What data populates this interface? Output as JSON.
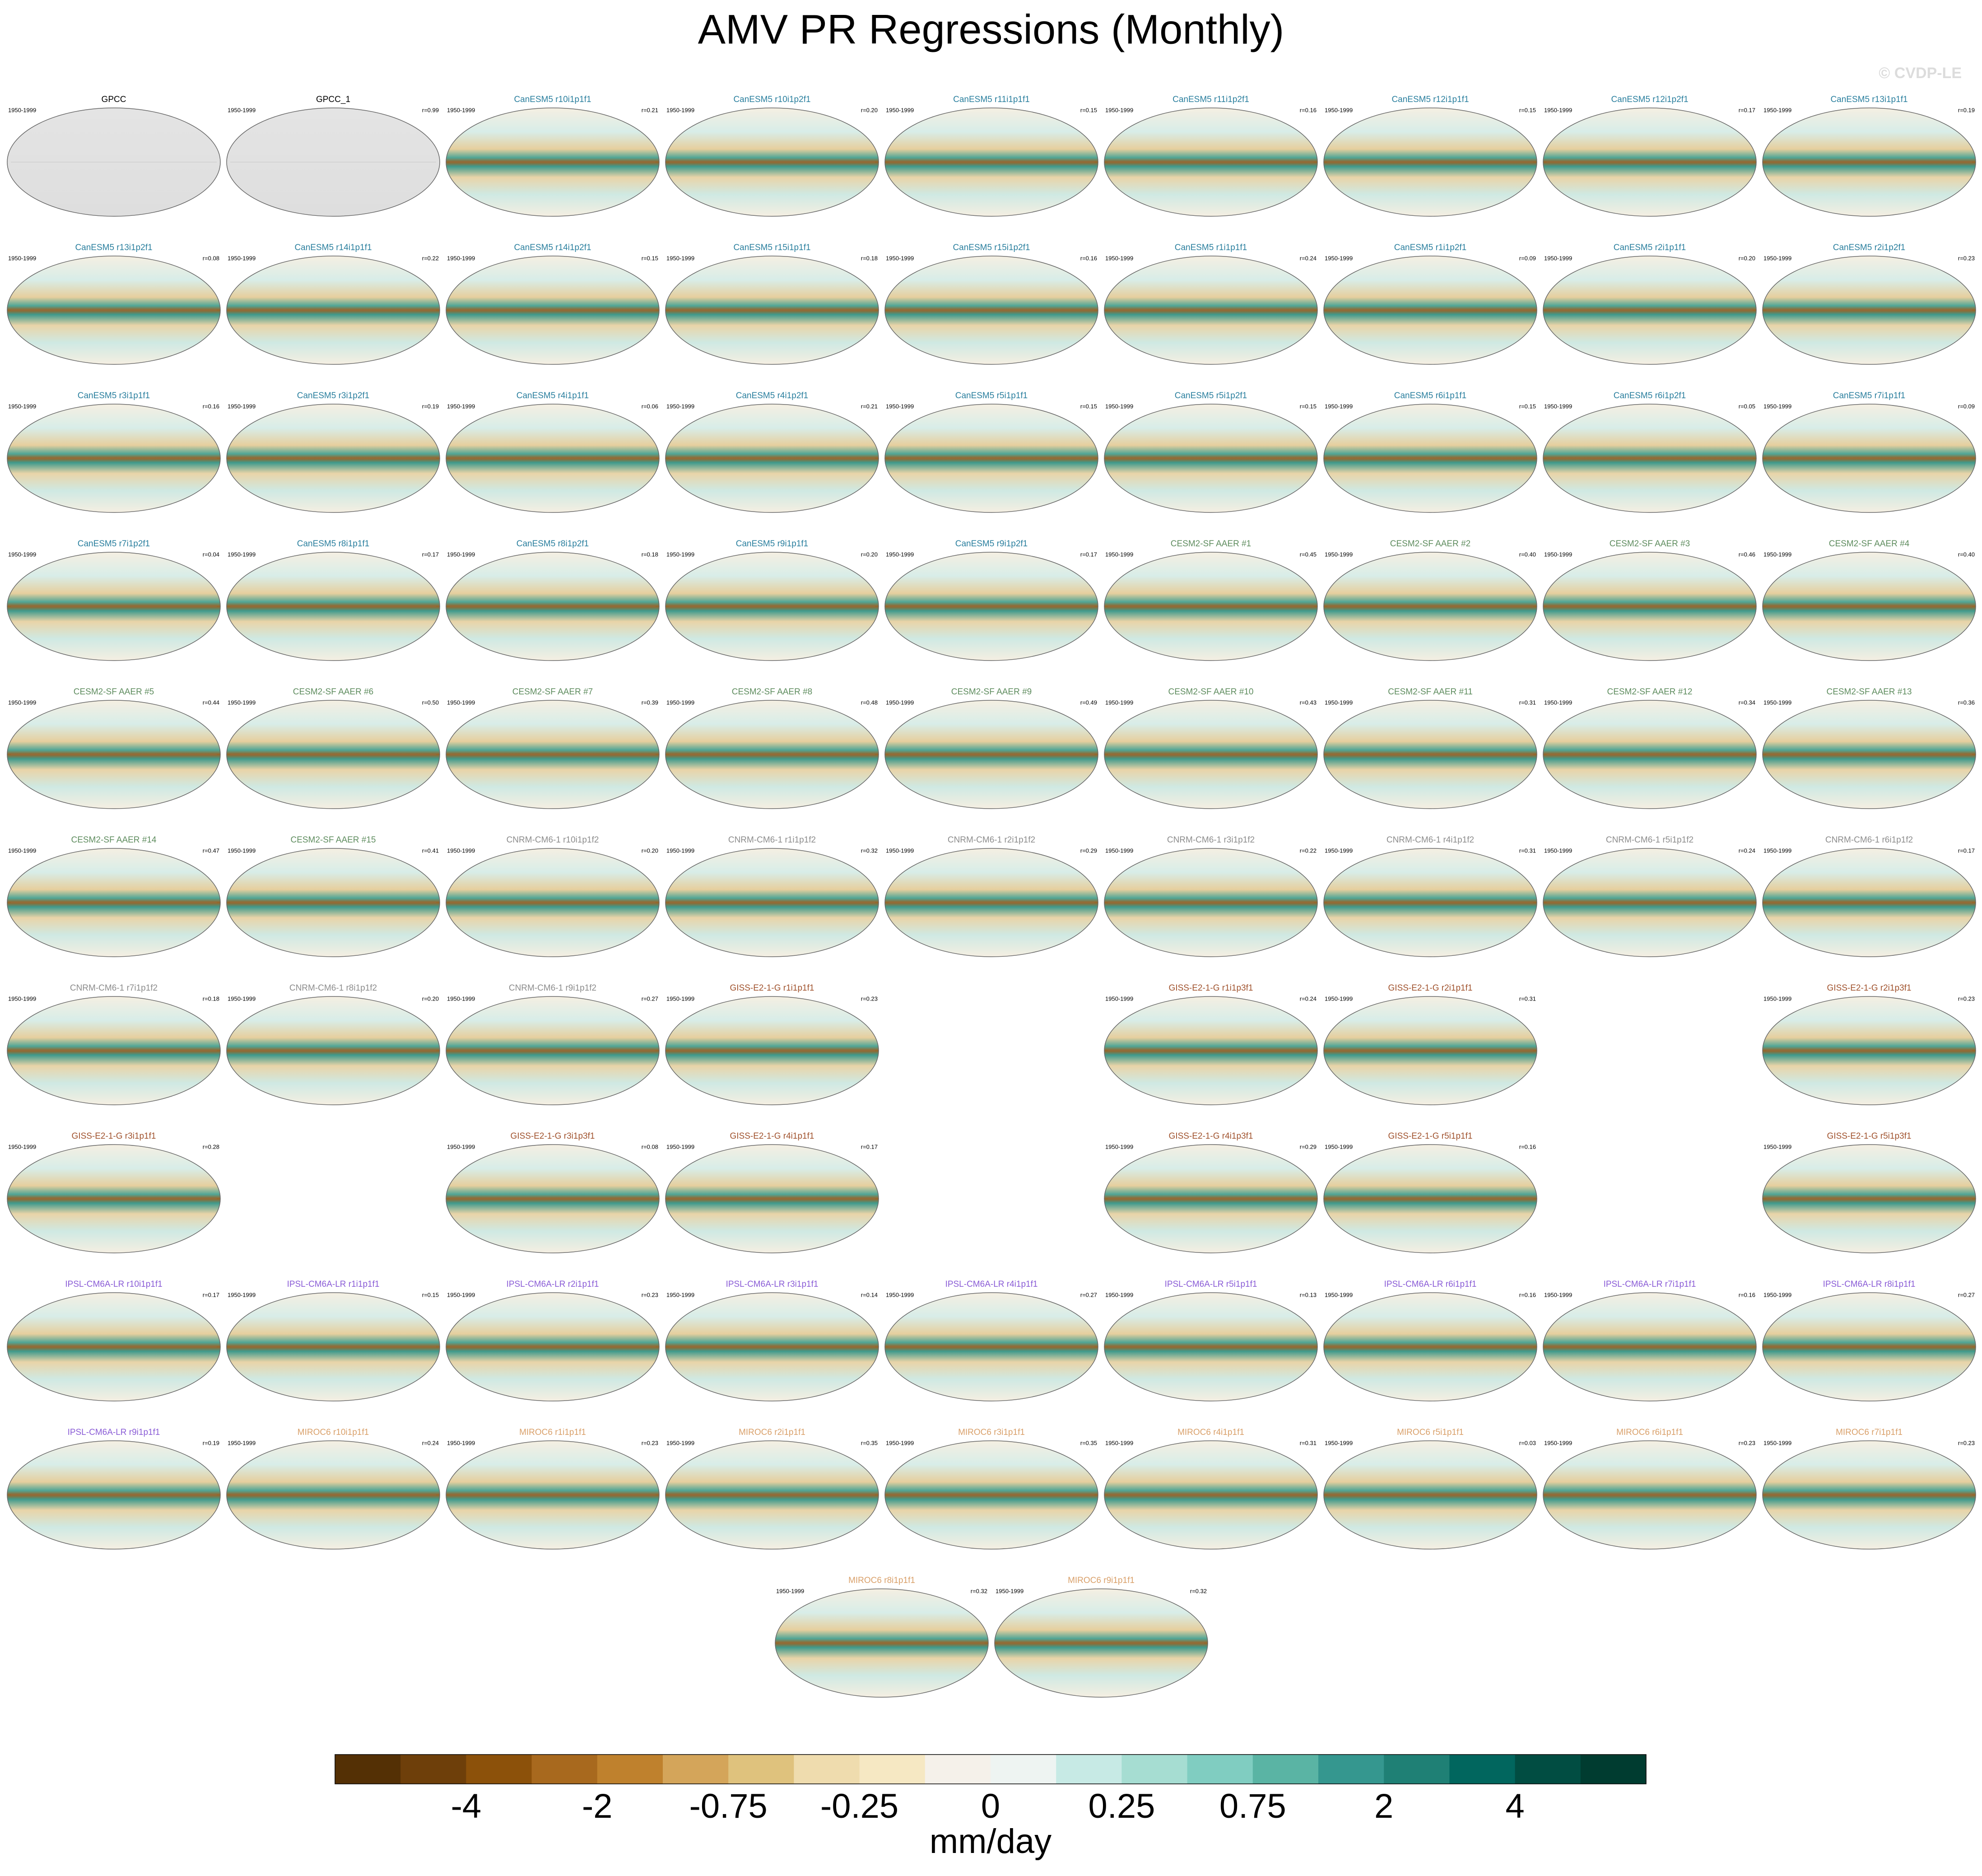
{
  "chart_data": {
    "type": "map-panels",
    "title": "AMV PR Regressions (Monthly)",
    "watermark": "© CVDP-LE",
    "rows": [
      [
        {
          "title": "GPCC",
          "period": "1950-1999",
          "color": "#000000",
          "observed": true
        },
        {
          "title": "GPCC_1",
          "period": "1950-1999",
          "r": "r=0.99",
          "color": "#000000",
          "observed": true
        },
        {
          "title": "CanESM5 r10i1p1f1",
          "period": "1950-1999",
          "r": "r=0.21",
          "color": "#2a7f9e"
        },
        {
          "title": "CanESM5 r10i1p2f1",
          "period": "1950-1999",
          "r": "r=0.20",
          "color": "#2a7f9e"
        },
        {
          "title": "CanESM5 r11i1p1f1",
          "period": "1950-1999",
          "r": "r=0.15",
          "color": "#2a7f9e"
        },
        {
          "title": "CanESM5 r11i1p2f1",
          "period": "1950-1999",
          "r": "r=0.16",
          "color": "#2a7f9e"
        },
        {
          "title": "CanESM5 r12i1p1f1",
          "period": "1950-1999",
          "r": "r=0.15",
          "color": "#2a7f9e"
        },
        {
          "title": "CanESM5 r12i1p2f1",
          "period": "1950-1999",
          "r": "r=0.17",
          "color": "#2a7f9e"
        },
        {
          "title": "CanESM5 r13i1p1f1",
          "period": "1950-1999",
          "r": "r=0.19",
          "color": "#2a7f9e"
        }
      ],
      [
        {
          "title": "CanESM5 r13i1p2f1",
          "period": "1950-1999",
          "r": "r=0.08",
          "color": "#2a7f9e"
        },
        {
          "title": "CanESM5 r14i1p1f1",
          "period": "1950-1999",
          "r": "r=0.22",
          "color": "#2a7f9e"
        },
        {
          "title": "CanESM5 r14i1p2f1",
          "period": "1950-1999",
          "r": "r=0.15",
          "color": "#2a7f9e"
        },
        {
          "title": "CanESM5 r15i1p1f1",
          "period": "1950-1999",
          "r": "r=0.18",
          "color": "#2a7f9e"
        },
        {
          "title": "CanESM5 r15i1p2f1",
          "period": "1950-1999",
          "r": "r=0.16",
          "color": "#2a7f9e"
        },
        {
          "title": "CanESM5 r1i1p1f1",
          "period": "1950-1999",
          "r": "r=0.24",
          "color": "#2a7f9e"
        },
        {
          "title": "CanESM5 r1i1p2f1",
          "period": "1950-1999",
          "r": "r=0.09",
          "color": "#2a7f9e"
        },
        {
          "title": "CanESM5 r2i1p1f1",
          "period": "1950-1999",
          "r": "r=0.20",
          "color": "#2a7f9e"
        },
        {
          "title": "CanESM5 r2i1p2f1",
          "period": "1950-1999",
          "r": "r=0.23",
          "color": "#2a7f9e"
        }
      ],
      [
        {
          "title": "CanESM5 r3i1p1f1",
          "period": "1950-1999",
          "r": "r=0.16",
          "color": "#2a7f9e"
        },
        {
          "title": "CanESM5 r3i1p2f1",
          "period": "1950-1999",
          "r": "r=0.19",
          "color": "#2a7f9e"
        },
        {
          "title": "CanESM5 r4i1p1f1",
          "period": "1950-1999",
          "r": "r=0.06",
          "color": "#2a7f9e"
        },
        {
          "title": "CanESM5 r4i1p2f1",
          "period": "1950-1999",
          "r": "r=0.21",
          "color": "#2a7f9e"
        },
        {
          "title": "CanESM5 r5i1p1f1",
          "period": "1950-1999",
          "r": "r=0.15",
          "color": "#2a7f9e"
        },
        {
          "title": "CanESM5 r5i1p2f1",
          "period": "1950-1999",
          "r": "r=0.15",
          "color": "#2a7f9e"
        },
        {
          "title": "CanESM5 r6i1p1f1",
          "period": "1950-1999",
          "r": "r=0.15",
          "color": "#2a7f9e"
        },
        {
          "title": "CanESM5 r6i1p2f1",
          "period": "1950-1999",
          "r": "r=0.05",
          "color": "#2a7f9e"
        },
        {
          "title": "CanESM5 r7i1p1f1",
          "period": "1950-1999",
          "r": "r=0.09",
          "color": "#2a7f9e"
        }
      ],
      [
        {
          "title": "CanESM5 r7i1p2f1",
          "period": "1950-1999",
          "r": "r=0.04",
          "color": "#2a7f9e"
        },
        {
          "title": "CanESM5 r8i1p1f1",
          "period": "1950-1999",
          "r": "r=0.17",
          "color": "#2a7f9e"
        },
        {
          "title": "CanESM5 r8i1p2f1",
          "period": "1950-1999",
          "r": "r=0.18",
          "color": "#2a7f9e"
        },
        {
          "title": "CanESM5 r9i1p1f1",
          "period": "1950-1999",
          "r": "r=0.20",
          "color": "#2a7f9e"
        },
        {
          "title": "CanESM5 r9i1p2f1",
          "period": "1950-1999",
          "r": "r=0.17",
          "color": "#2a7f9e"
        },
        {
          "title": "CESM2-SF AAER #1",
          "period": "1950-1999",
          "r": "r=0.45",
          "color": "#5e8c5e"
        },
        {
          "title": "CESM2-SF AAER #2",
          "period": "1950-1999",
          "r": "r=0.40",
          "color": "#5e8c5e"
        },
        {
          "title": "CESM2-SF AAER #3",
          "period": "1950-1999",
          "r": "r=0.46",
          "color": "#5e8c5e"
        },
        {
          "title": "CESM2-SF AAER #4",
          "period": "1950-1999",
          "r": "r=0.40",
          "color": "#5e8c5e"
        }
      ],
      [
        {
          "title": "CESM2-SF AAER #5",
          "period": "1950-1999",
          "r": "r=0.44",
          "color": "#5e8c5e"
        },
        {
          "title": "CESM2-SF AAER #6",
          "period": "1950-1999",
          "r": "r=0.50",
          "color": "#5e8c5e"
        },
        {
          "title": "CESM2-SF AAER #7",
          "period": "1950-1999",
          "r": "r=0.39",
          "color": "#5e8c5e"
        },
        {
          "title": "CESM2-SF AAER #8",
          "period": "1950-1999",
          "r": "r=0.48",
          "color": "#5e8c5e"
        },
        {
          "title": "CESM2-SF AAER #9",
          "period": "1950-1999",
          "r": "r=0.49",
          "color": "#5e8c5e"
        },
        {
          "title": "CESM2-SF AAER #10",
          "period": "1950-1999",
          "r": "r=0.43",
          "color": "#5e8c5e"
        },
        {
          "title": "CESM2-SF AAER #11",
          "period": "1950-1999",
          "r": "r=0.31",
          "color": "#5e8c5e"
        },
        {
          "title": "CESM2-SF AAER #12",
          "period": "1950-1999",
          "r": "r=0.34",
          "color": "#5e8c5e"
        },
        {
          "title": "CESM2-SF AAER #13",
          "period": "1950-1999",
          "r": "r=0.36",
          "color": "#5e8c5e"
        }
      ],
      [
        {
          "title": "CESM2-SF AAER #14",
          "period": "1950-1999",
          "r": "r=0.47",
          "color": "#5e8c5e"
        },
        {
          "title": "CESM2-SF AAER #15",
          "period": "1950-1999",
          "r": "r=0.41",
          "color": "#5e8c5e"
        },
        {
          "title": "CNRM-CM6-1 r10i1p1f2",
          "period": "1950-1999",
          "r": "r=0.20",
          "color": "#8c8c8c"
        },
        {
          "title": "CNRM-CM6-1 r1i1p1f2",
          "period": "1950-1999",
          "r": "r=0.32",
          "color": "#8c8c8c"
        },
        {
          "title": "CNRM-CM6-1 r2i1p1f2",
          "period": "1950-1999",
          "r": "r=0.29",
          "color": "#8c8c8c"
        },
        {
          "title": "CNRM-CM6-1 r3i1p1f2",
          "period": "1950-1999",
          "r": "r=0.22",
          "color": "#8c8c8c"
        },
        {
          "title": "CNRM-CM6-1 r4i1p1f2",
          "period": "1950-1999",
          "r": "r=0.31",
          "color": "#8c8c8c"
        },
        {
          "title": "CNRM-CM6-1 r5i1p1f2",
          "period": "1950-1999",
          "r": "r=0.24",
          "color": "#8c8c8c"
        },
        {
          "title": "CNRM-CM6-1 r6i1p1f2",
          "period": "1950-1999",
          "r": "r=0.17",
          "color": "#8c8c8c"
        }
      ],
      [
        {
          "title": "CNRM-CM6-1 r7i1p1f2",
          "period": "1950-1999",
          "r": "r=0.18",
          "color": "#8c8c8c"
        },
        {
          "title": "CNRM-CM6-1 r8i1p1f2",
          "period": "1950-1999",
          "r": "r=0.20",
          "color": "#8c8c8c"
        },
        {
          "title": "CNRM-CM6-1 r9i1p1f2",
          "period": "1950-1999",
          "r": "r=0.27",
          "color": "#8c8c8c"
        },
        {
          "title": "GISS-E2-1-G r1i1p1f1",
          "period": "1950-1999",
          "r": "r=0.23",
          "color": "#a0522d"
        },
        null,
        {
          "title": "GISS-E2-1-G r1i1p3f1",
          "period": "1950-1999",
          "r": "r=0.24",
          "color": "#a0522d"
        },
        {
          "title": "GISS-E2-1-G r2i1p1f1",
          "period": "1950-1999",
          "r": "r=0.31",
          "color": "#a0522d"
        },
        null,
        {
          "title": "GISS-E2-1-G r2i1p3f1",
          "period": "1950-1999",
          "r": "r=0.23",
          "color": "#a0522d"
        }
      ],
      [
        {
          "title": "GISS-E2-1-G r3i1p1f1",
          "period": "1950-1999",
          "r": "r=0.28",
          "color": "#a0522d"
        },
        null,
        {
          "title": "GISS-E2-1-G r3i1p3f1",
          "period": "1950-1999",
          "r": "r=0.08",
          "color": "#a0522d"
        },
        {
          "title": "GISS-E2-1-G r4i1p1f1",
          "period": "1950-1999",
          "r": "r=0.17",
          "color": "#a0522d"
        },
        null,
        {
          "title": "GISS-E2-1-G r4i1p3f1",
          "period": "1950-1999",
          "r": "r=0.29",
          "color": "#a0522d"
        },
        {
          "title": "GISS-E2-1-G r5i1p1f1",
          "period": "1950-1999",
          "r": "r=0.16",
          "color": "#a0522d"
        },
        null,
        {
          "title": "GISS-E2-1-G r5i1p3f1",
          "period": "1950-1999",
          "color": "#a0522d"
        }
      ],
      [
        {
          "title": "IPSL-CM6A-LR r10i1p1f1",
          "r": "r=0.17",
          "color": "#8a5cd6"
        },
        {
          "title": "IPSL-CM6A-LR r1i1p1f1",
          "period": "1950-1999",
          "r": "r=0.15",
          "color": "#8a5cd6"
        },
        {
          "title": "IPSL-CM6A-LR r2i1p1f1",
          "period": "1950-1999",
          "r": "r=0.23",
          "color": "#8a5cd6"
        },
        {
          "title": "IPSL-CM6A-LR r3i1p1f1",
          "period": "1950-1999",
          "r": "r=0.14",
          "color": "#8a5cd6"
        },
        {
          "title": "IPSL-CM6A-LR r4i1p1f1",
          "period": "1950-1999",
          "r": "r=0.27",
          "color": "#8a5cd6"
        },
        {
          "title": "IPSL-CM6A-LR r5i1p1f1",
          "period": "1950-1999",
          "r": "r=0.13",
          "color": "#8a5cd6"
        },
        {
          "title": "IPSL-CM6A-LR r6i1p1f1",
          "period": "1950-1999",
          "r": "r=0.16",
          "color": "#8a5cd6"
        },
        {
          "title": "IPSL-CM6A-LR r7i1p1f1",
          "period": "1950-1999",
          "r": "r=0.16",
          "color": "#8a5cd6"
        },
        {
          "title": "IPSL-CM6A-LR r8i1p1f1",
          "period": "1950-1999",
          "r": "r=0.27",
          "color": "#8a5cd6"
        }
      ],
      [
        {
          "title": "IPSL-CM6A-LR r9i1p1f1",
          "r": "r=0.19",
          "color": "#8a5cd6"
        },
        {
          "title": "MIROC6 r10i1p1f1",
          "period": "1950-1999",
          "r": "r=0.24",
          "color": "#d9a06a"
        },
        {
          "title": "MIROC6 r1i1p1f1",
          "period": "1950-1999",
          "r": "r=0.23",
          "color": "#d9a06a"
        },
        {
          "title": "MIROC6 r2i1p1f1",
          "period": "1950-1999",
          "r": "r=0.35",
          "color": "#d9a06a"
        },
        {
          "title": "MIROC6 r3i1p1f1",
          "period": "1950-1999",
          "r": "r=0.35",
          "color": "#d9a06a"
        },
        {
          "title": "MIROC6 r4i1p1f1",
          "period": "1950-1999",
          "r": "r=0.31",
          "color": "#d9a06a"
        },
        {
          "title": "MIROC6 r5i1p1f1",
          "period": "1950-1999",
          "r": "r=0.03",
          "color": "#d9a06a"
        },
        {
          "title": "MIROC6 r6i1p1f1",
          "period": "1950-1999",
          "r": "r=0.23",
          "color": "#d9a06a"
        },
        {
          "title": "MIROC6 r7i1p1f1",
          "period": "1950-1999",
          "r": "r=0.23",
          "color": "#d9a06a"
        }
      ],
      [
        {
          "title": "MIROC6 r8i1p1f1",
          "period": "1950-1999",
          "r": "r=0.32",
          "color": "#d9a06a"
        },
        {
          "title": "MIROC6 r9i1p1f1",
          "period": "1950-1999",
          "r": "r=0.32",
          "color": "#d9a06a"
        }
      ]
    ],
    "colorbar": {
      "label": "mm/day",
      "colors": [
        "#543005",
        "#6e3f0a",
        "#8c510a",
        "#a8691e",
        "#bf812d",
        "#d4a55a",
        "#dfc27d",
        "#efdcae",
        "#f6e8c3",
        "#f5f1ea",
        "#eef4f2",
        "#c7eae5",
        "#a6ddd2",
        "#80cdc1",
        "#5ab4a4",
        "#35978f",
        "#1f8075",
        "#01665e",
        "#014d42",
        "#003c30"
      ],
      "ticks": [
        -4,
        -2,
        -0.75,
        -0.25,
        0,
        0.25,
        0.75,
        2,
        4
      ]
    }
  }
}
